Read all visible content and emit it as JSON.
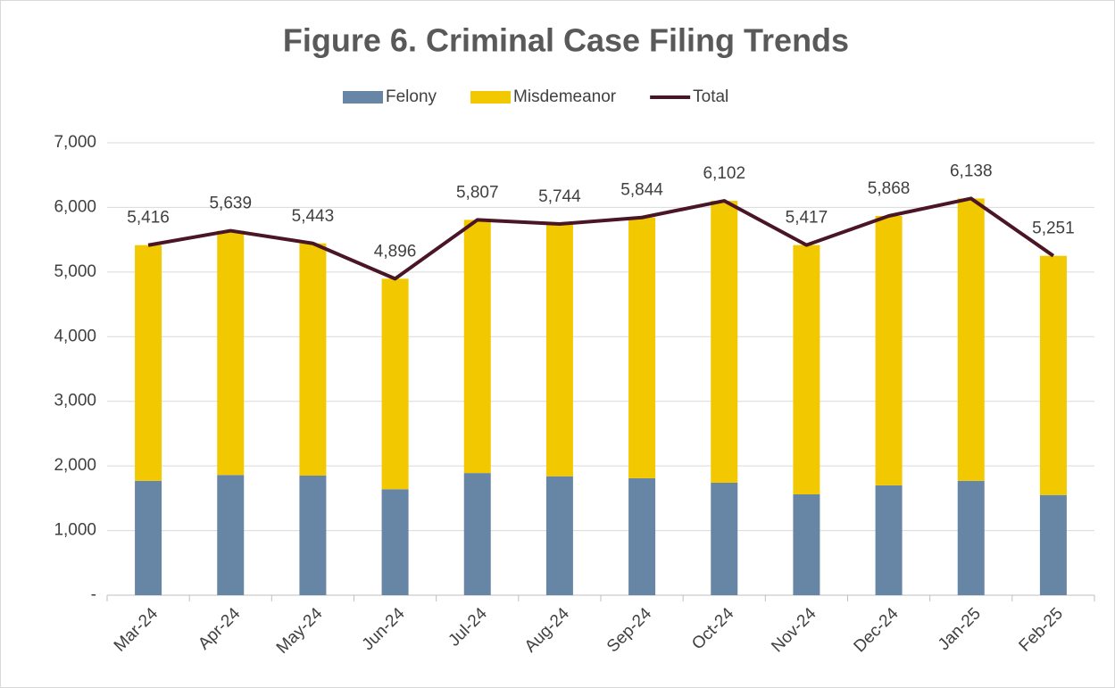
{
  "chart_data": {
    "type": "bar",
    "title": "Figure 6. Criminal Case Filing Trends",
    "categories": [
      "Mar-24",
      "Apr-24",
      "May-24",
      "Jun-24",
      "Jul-24",
      "Aug-24",
      "Sep-24",
      "Oct-24",
      "Nov-24",
      "Dec-24",
      "Jan-25",
      "Feb-25"
    ],
    "series": [
      {
        "name": "Felony",
        "type": "bar",
        "color": "#6786a5",
        "values": [
          1770,
          1860,
          1850,
          1640,
          1890,
          1840,
          1810,
          1740,
          1560,
          1700,
          1770,
          1550
        ]
      },
      {
        "name": "Misdemeanor",
        "type": "bar",
        "color": "#f2c800",
        "values": [
          3646,
          3779,
          3593,
          3256,
          3917,
          3904,
          4034,
          4362,
          3857,
          4168,
          4368,
          3701
        ]
      },
      {
        "name": "Total",
        "type": "line",
        "color": "#4a1525",
        "values": [
          5416,
          5639,
          5443,
          4896,
          5807,
          5744,
          5844,
          6102,
          5417,
          5868,
          6138,
          5251
        ],
        "value_labels": [
          "5,416",
          "5,639",
          "5,443",
          "4,896",
          "5,807",
          "5,744",
          "5,844",
          "6,102",
          "5,417",
          "5,868",
          "6,138",
          "5,251"
        ]
      }
    ],
    "stacked": true,
    "ylim": [
      0,
      7000
    ],
    "yticks": [
      {
        "value": 0,
        "label": "-"
      },
      {
        "value": 1000,
        "label": "1,000"
      },
      {
        "value": 2000,
        "label": "2,000"
      },
      {
        "value": 3000,
        "label": "3,000"
      },
      {
        "value": 4000,
        "label": "4,000"
      },
      {
        "value": 5000,
        "label": "5,000"
      },
      {
        "value": 6000,
        "label": "6,000"
      },
      {
        "value": 7000,
        "label": "7,000"
      }
    ],
    "grid": true,
    "legend": "top"
  }
}
